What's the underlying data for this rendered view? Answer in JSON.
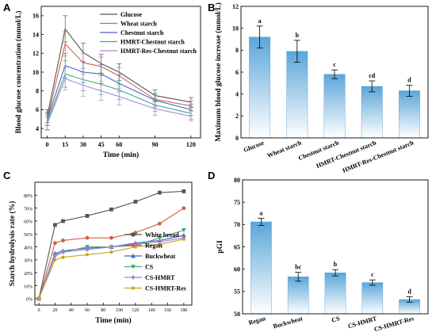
{
  "chart_data": [
    {
      "panel": "A",
      "type": "line",
      "xlabel": "Time (min)",
      "ylabel": "Blood glucose concentration (mmol/L)",
      "x": [
        0,
        15,
        30,
        45,
        60,
        90,
        120
      ],
      "xticks": [
        0,
        15,
        30,
        45,
        60,
        90,
        120
      ],
      "xlim": [
        -5,
        128
      ],
      "ylim": [
        3,
        17
      ],
      "yticks": [
        4,
        6,
        8,
        10,
        12,
        14,
        16
      ],
      "legend": "top-right",
      "series": [
        {
          "name": "Glucose",
          "color": "#555555",
          "values": [
            5.3,
            14.6,
            12.1,
            10.9,
            10.0,
            7.5,
            6.8
          ],
          "errors": [
            0.7,
            1.4,
            1.0,
            1.0,
            0.9,
            0.6,
            0.5
          ]
        },
        {
          "name": "Wheat starch",
          "color": "#c8694a",
          "values": [
            5.0,
            13.0,
            11.0,
            10.6,
            9.6,
            7.1,
            6.4
          ],
          "errors": [
            0.7,
            1.3,
            1.0,
            1.0,
            0.9,
            0.6,
            0.5
          ]
        },
        {
          "name": "Chestnut starch",
          "color": "#4a63c7",
          "values": [
            5.0,
            10.7,
            10.0,
            9.8,
            8.8,
            7.0,
            6.0
          ],
          "errors": [
            0.7,
            1.3,
            1.1,
            1.0,
            0.9,
            0.7,
            0.6
          ]
        },
        {
          "name": "HMRT-Chestnut starch",
          "color": "#3fa87a",
          "values": [
            4.7,
            9.8,
            9.2,
            8.7,
            8.1,
            6.5,
            5.6
          ],
          "errors": [
            0.8,
            1.4,
            1.2,
            1.1,
            1.0,
            0.7,
            0.6
          ]
        },
        {
          "name": "HMRT-Res-Chestnut starch",
          "color": "#a98ed6",
          "values": [
            4.5,
            9.3,
            8.6,
            8.0,
            7.4,
            6.1,
            5.3
          ],
          "errors": [
            0.7,
            1.2,
            1.2,
            1.0,
            0.9,
            0.7,
            0.5
          ]
        }
      ]
    },
    {
      "panel": "B",
      "type": "bar",
      "ylabel": "Maximum blood glucose increase (mmol/L)",
      "categories": [
        "Glucose",
        "Wheat starch",
        "Chestnut starch",
        "HMRT-Chestnut starch",
        "HMRT-Res-Chestnut starch"
      ],
      "values": [
        9.2,
        7.9,
        5.8,
        4.7,
        4.3
      ],
      "errors": [
        1.0,
        1.0,
        0.4,
        0.5,
        0.5
      ],
      "labels": [
        "a",
        "b",
        "c",
        "cd",
        "d"
      ],
      "ylim": [
        0,
        12
      ],
      "yticks": [
        0,
        2,
        4,
        6,
        8,
        10,
        12
      ],
      "color": "#6ab0dc"
    },
    {
      "panel": "C",
      "type": "line",
      "xlabel": "Time (min)",
      "ylabel": "Starch hydrolysis rate (%)",
      "x": [
        0,
        20,
        30,
        60,
        90,
        120,
        150,
        180
      ],
      "xticks": [
        0,
        20,
        40,
        60,
        80,
        100,
        120,
        140,
        160,
        180
      ],
      "xlim": [
        -5,
        190
      ],
      "ylim": [
        -5,
        90
      ],
      "yticks": [
        0,
        10,
        20,
        30,
        40,
        50,
        60,
        70,
        80
      ],
      "ytick_format": "percent",
      "legend": "bottom-right",
      "series": [
        {
          "name": "White bread",
          "color": "#555555",
          "marker": "square",
          "values": [
            0,
            57,
            60,
            64,
            69,
            75,
            82,
            83
          ]
        },
        {
          "name": "Regan",
          "color": "#d2613f",
          "marker": "circle",
          "values": [
            0,
            43,
            45,
            47,
            47,
            51,
            58,
            70
          ]
        },
        {
          "name": "Buckwheat",
          "color": "#3d5fcc",
          "marker": "triangle-up",
          "values": [
            0,
            35,
            37,
            39,
            40,
            43,
            45,
            49
          ]
        },
        {
          "name": "CS",
          "color": "#3faa7a",
          "marker": "triangle-down",
          "values": [
            0,
            34,
            36,
            40,
            40,
            41,
            47,
            53
          ]
        },
        {
          "name": "CS-HMRT",
          "color": "#a57fd0",
          "marker": "diamond",
          "values": [
            0,
            33,
            36,
            38,
            40,
            42,
            44,
            47
          ]
        },
        {
          "name": "CS-HMRT-Res",
          "color": "#c9a31e",
          "marker": "pentagon",
          "values": [
            0,
            30,
            32,
            34,
            36,
            40,
            42,
            46
          ]
        }
      ]
    },
    {
      "panel": "D",
      "type": "bar",
      "ylabel": "pGI",
      "categories": [
        "Regan",
        "Buckwheat",
        "CS",
        "CS-HMRT",
        "CS-HMRT-Res"
      ],
      "values": [
        70.6,
        58.3,
        59.2,
        57.0,
        53.2
      ],
      "errors": [
        0.8,
        1.0,
        0.7,
        0.6,
        0.6
      ],
      "labels": [
        "a",
        "bc",
        "b",
        "c",
        "d"
      ],
      "ylim": [
        50,
        80
      ],
      "yticks": [
        50,
        55,
        60,
        65,
        70,
        75,
        80
      ],
      "color": "#6ab0dc"
    }
  ]
}
